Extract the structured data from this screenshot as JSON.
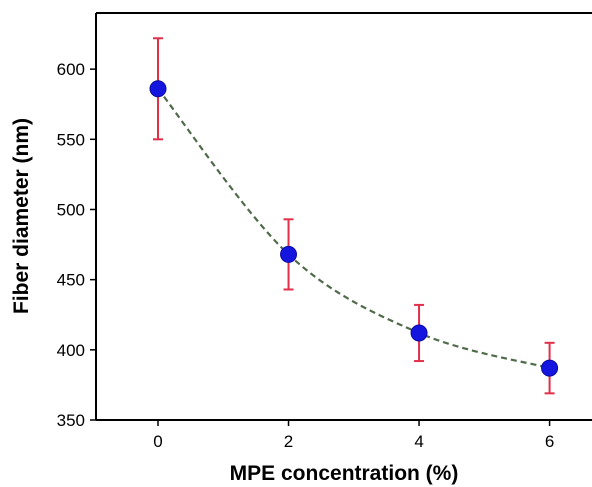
{
  "chart_data": {
    "type": "scatter",
    "xlabel": "MPE concentration (%)",
    "ylabel": "Fiber diameter (nm)",
    "xlim": [
      -0.95,
      6.65
    ],
    "ylim": [
      350,
      640
    ],
    "x_ticks": [
      0,
      2,
      4,
      6
    ],
    "x_tick_labels": [
      "0",
      "2",
      "4",
      "6"
    ],
    "y_ticks": [
      350,
      400,
      450,
      500,
      550,
      600
    ],
    "y_tick_labels": [
      "350",
      "400",
      "450",
      "500",
      "550",
      "600"
    ],
    "grid": false,
    "series": [
      {
        "x": [
          0,
          2,
          4,
          6
        ],
        "y": [
          586,
          468,
          412,
          387
        ],
        "error_low": [
          550,
          443,
          392,
          369
        ],
        "error_high": [
          622,
          493,
          432,
          405
        ]
      }
    ],
    "colors": {
      "marker": "#1515e0",
      "error_bar": "#e0304a",
      "trend_line": "#4f6b4a",
      "axis": "#000000"
    }
  }
}
